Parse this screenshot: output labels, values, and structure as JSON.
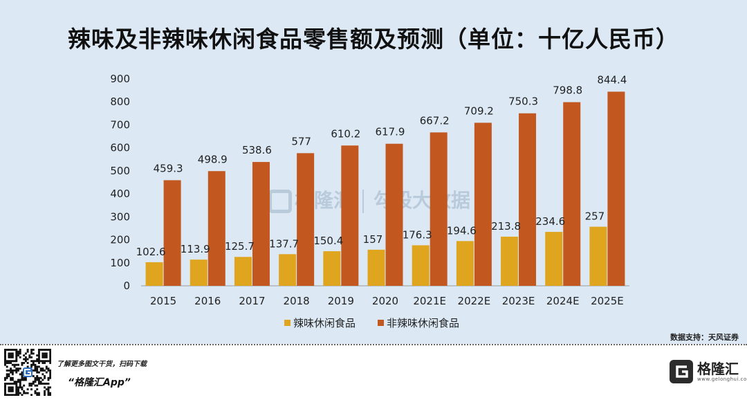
{
  "chart_data": {
    "type": "bar",
    "title": "辣味及非辣味休闲食品零售额及预测（单位：十亿人民币）",
    "categories": [
      "2015",
      "2016",
      "2017",
      "2018",
      "2019",
      "2020",
      "2021E",
      "2022E",
      "2023E",
      "2024E",
      "2025E"
    ],
    "series": [
      {
        "name": "辣味休闲食品",
        "color": "#dfa51f",
        "values": [
          102.6,
          113.9,
          125.7,
          137.7,
          150.4,
          157,
          176.3,
          194.6,
          213.8,
          234.6,
          257
        ]
      },
      {
        "name": "非辣味休闲食品",
        "color": "#c2571f",
        "values": [
          459.3,
          498.9,
          538.6,
          577,
          610.2,
          617.9,
          667.2,
          709.2,
          750.3,
          798.8,
          844.4
        ]
      }
    ],
    "data_labels": [
      [
        "102.6",
        "113.9",
        "125.7",
        "137.7",
        "150.4",
        "157",
        "176.3",
        "194.6",
        "213.8",
        "234.6",
        "257"
      ],
      [
        "459.3",
        "498.9",
        "538.6",
        "577",
        "610.2",
        "617.9",
        "667.2",
        "709.2",
        "750.3",
        "798.8",
        "844.4"
      ]
    ],
    "ylim": [
      0,
      900
    ],
    "yticks": [
      "0",
      "100",
      "200",
      "300",
      "400",
      "500",
      "600",
      "700",
      "800",
      "900"
    ],
    "grid": false,
    "legend_position": "bottom"
  },
  "source_note": "数据支持：天风证券",
  "watermark": {
    "brand": "格隆汇",
    "brand2": "勾股大数据"
  },
  "footer": {
    "promo": "了解更多图文干货，扫码下载",
    "app_name": "“格隆汇App”",
    "logo_name": "格隆汇",
    "logo_url": "www.gelonghui.com"
  },
  "colors": {
    "background": "#dce9f5",
    "spicy": "#dfa51f",
    "non_spicy": "#c2571f"
  },
  "icons": {
    "qr": "qr-code-icon",
    "logo": "gelonghui-logo-icon"
  }
}
